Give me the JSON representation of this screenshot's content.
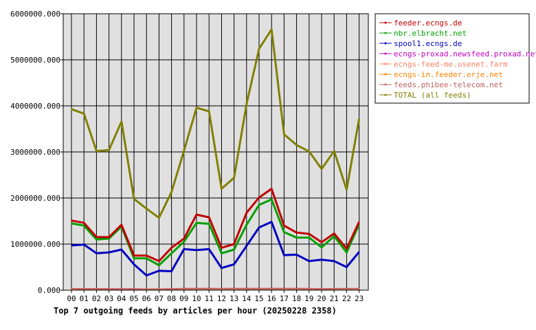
{
  "chart_data": {
    "type": "line",
    "title": "Top 7 outgoing feeds by articles per hour (20250228 2358)",
    "categories": [
      "00",
      "01",
      "02",
      "03",
      "04",
      "05",
      "06",
      "07",
      "08",
      "09",
      "10",
      "11",
      "12",
      "13",
      "14",
      "15",
      "16",
      "17",
      "18",
      "19",
      "20",
      "21",
      "22",
      "23"
    ],
    "y_ticks": [
      "0.000",
      "1000000.000",
      "2000000.000",
      "3000000.000",
      "4000000.000",
      "5000000.000",
      "6000000.000"
    ],
    "ylim": [
      0,
      6000000
    ],
    "grid": true,
    "legend_position": "top-right",
    "background_color": "#e0e0e0",
    "series": [
      {
        "name": "feeder.ecngs.de",
        "color": "#c00000",
        "values": [
          1510000,
          1460000,
          1150000,
          1150000,
          1420000,
          750000,
          750000,
          630000,
          920000,
          1120000,
          1640000,
          1580000,
          920000,
          1000000,
          1680000,
          2010000,
          2200000,
          1400000,
          1250000,
          1220000,
          1040000,
          1230000,
          900000,
          1480000
        ]
      },
      {
        "name": "nbr.elbracht.net",
        "color": "#00a000",
        "values": [
          1450000,
          1400000,
          1100000,
          1120000,
          1380000,
          690000,
          690000,
          540000,
          800000,
          1050000,
          1460000,
          1440000,
          800000,
          880000,
          1420000,
          1850000,
          1970000,
          1260000,
          1140000,
          1140000,
          930000,
          1170000,
          820000,
          1430000
        ]
      },
      {
        "name": "spool1.ecngs.de",
        "color": "#0000c0",
        "values": [
          970000,
          990000,
          800000,
          820000,
          880000,
          560000,
          320000,
          420000,
          410000,
          890000,
          870000,
          890000,
          480000,
          560000,
          960000,
          1360000,
          1480000,
          760000,
          770000,
          630000,
          660000,
          630000,
          500000,
          830000
        ]
      },
      {
        "name": "ecngs-proxad.newsfeed.proxad.net",
        "color": "#c000c0",
        "values": [
          32000,
          28000,
          30000,
          26000,
          25000,
          25000,
          23000,
          23000,
          27000,
          33000,
          33000,
          33000,
          32000,
          33000,
          33000,
          33000,
          33000,
          33000,
          33000,
          32000,
          26000,
          32000,
          32000,
          32000
        ]
      },
      {
        "name": "ecngs-feed-me.usenet.farm",
        "color": "#ff8060",
        "values": [
          30000,
          26000,
          28000,
          24000,
          23000,
          23000,
          21000,
          21000,
          25000,
          31000,
          31000,
          31000,
          30000,
          31000,
          31000,
          31000,
          31000,
          31000,
          31000,
          30000,
          24000,
          30000,
          30000,
          30000
        ]
      },
      {
        "name": "ecngs-in.feeder.erje.net",
        "color": "#ff8000",
        "values": [
          28000,
          24000,
          26000,
          22000,
          21000,
          21000,
          19000,
          19000,
          23000,
          29000,
          29000,
          29000,
          28000,
          29000,
          29000,
          29000,
          29000,
          29000,
          29000,
          28000,
          22000,
          28000,
          28000,
          28000
        ]
      },
      {
        "name": "feeds.phibee-telecom.net",
        "color": "#c06060",
        "values": [
          26000,
          22000,
          24000,
          20000,
          19000,
          19000,
          17000,
          17000,
          21000,
          27000,
          27000,
          27000,
          26000,
          27000,
          27000,
          27000,
          27000,
          27000,
          27000,
          26000,
          20000,
          26000,
          26000,
          26000
        ]
      },
      {
        "name": "TOTAL (all feeds)",
        "color": "#808000",
        "values": [
          3930000,
          3830000,
          3020000,
          3040000,
          3660000,
          1980000,
          1770000,
          1570000,
          2130000,
          3030000,
          3960000,
          3880000,
          2200000,
          2440000,
          4040000,
          5240000,
          5660000,
          3380000,
          3150000,
          3010000,
          2630000,
          3020000,
          2180000,
          3720000
        ]
      }
    ]
  }
}
